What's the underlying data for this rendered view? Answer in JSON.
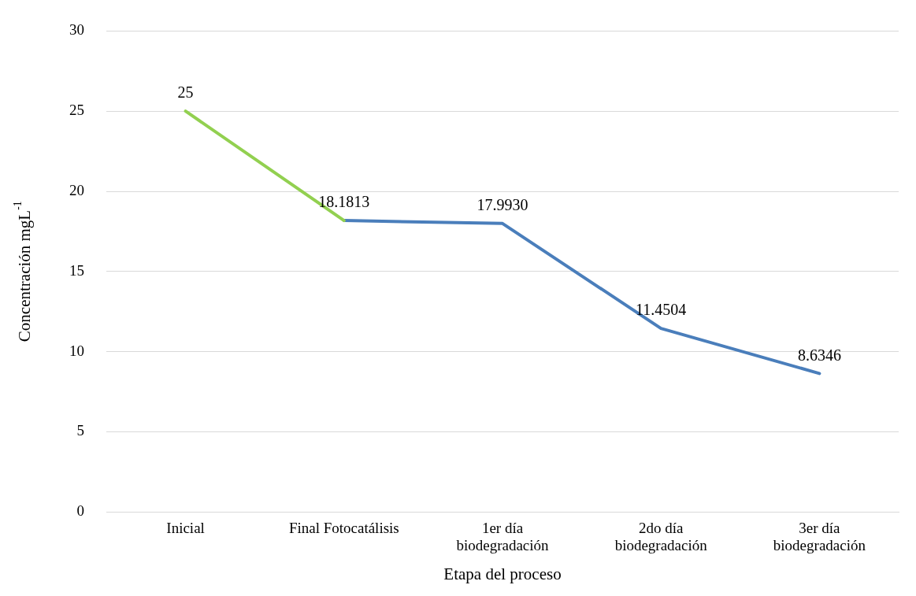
{
  "chart_data": {
    "type": "line",
    "xlabel": "Etapa del proceso",
    "ylabel": "Concentración mgL$^{-1}$",
    "categories": [
      "Inicial",
      "Final Fotocatálisis",
      "1er día\nbiodegradación",
      "2do día\nbiodegradación",
      "3er día\nbiodegradación"
    ],
    "series": [
      {
        "color": "#92d050",
        "values": [
          25,
          18.1813,
          null,
          null,
          null
        ],
        "value_labels": [
          "25",
          null,
          null,
          null,
          null
        ]
      },
      {
        "color": "#4a7ebb",
        "values": [
          null,
          18.1813,
          17.993,
          11.4504,
          8.6346
        ],
        "value_labels": [
          null,
          "18.1813",
          "17.9930",
          "11.4504",
          "8.6346"
        ]
      }
    ],
    "ylim": [
      0,
      30
    ],
    "yticks": [
      0,
      5,
      10,
      15,
      20,
      25,
      30
    ],
    "grid": "y",
    "marker": "none",
    "line_style": "solid",
    "legend": false
  }
}
